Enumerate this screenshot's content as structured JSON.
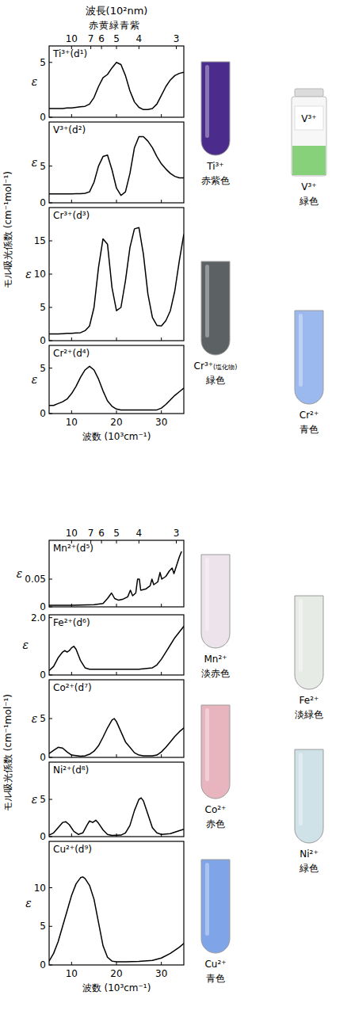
{
  "chart_data": [
    {
      "type": "line",
      "title": "Ti³⁺(d¹)",
      "y_label": "ε",
      "x2_label": "波長(10²nm)",
      "annotations": [
        "赤黄緑青紫"
      ],
      "x": [
        5,
        6,
        7,
        8,
        9,
        10,
        11,
        12,
        13,
        14,
        15,
        16,
        17,
        18,
        19,
        20,
        21,
        22,
        23,
        24,
        25,
        26,
        27,
        28,
        29,
        30,
        31,
        32,
        33,
        34,
        35
      ],
      "values": [
        0.8,
        0.8,
        0.8,
        0.8,
        0.85,
        0.85,
        0.9,
        0.95,
        1.0,
        1.2,
        1.8,
        2.8,
        3.6,
        3.9,
        4.5,
        5.0,
        4.8,
        3.8,
        2.4,
        1.4,
        0.9,
        0.7,
        0.7,
        0.8,
        1.2,
        2.0,
        2.8,
        3.4,
        3.8,
        4.0,
        4.1
      ],
      "color": "#000000",
      "xlim": [
        5,
        35
      ],
      "ylim": [
        0,
        6.5
      ],
      "xticks": [
        10,
        20,
        30
      ],
      "yticks": [
        0,
        5
      ],
      "x2ticks": [
        10,
        7,
        6,
        5,
        4,
        3
      ],
      "tick_labels": "y"
    },
    {
      "type": "line",
      "title": "V³⁺(d²)",
      "y_label": "ε",
      "x": [
        5,
        6,
        7,
        8,
        9,
        10,
        11,
        12,
        13,
        14,
        15,
        16,
        17,
        18,
        19,
        20,
        21,
        22,
        23,
        24,
        25,
        26,
        27,
        28,
        29,
        30,
        31,
        32,
        33,
        34,
        35
      ],
      "values": [
        1.2,
        1.2,
        1.2,
        1.2,
        1.2,
        1.2,
        1.25,
        1.25,
        1.3,
        1.5,
        2.8,
        5.0,
        6.3,
        6.5,
        4.5,
        2.0,
        1.0,
        1.5,
        4.0,
        7.5,
        9.0,
        9.0,
        8.4,
        7.5,
        6.3,
        5.3,
        4.6,
        4.0,
        3.6,
        3.4,
        3.4
      ],
      "color": "#000000",
      "xlim": [
        5,
        35
      ],
      "ylim": [
        0,
        11
      ],
      "xticks": [
        10,
        20,
        30
      ],
      "yticks": [
        0,
        5
      ],
      "tick_labels": "y"
    },
    {
      "type": "line",
      "title": "Cr³⁺(d³)",
      "y_label": "ε",
      "x": [
        5,
        6,
        7,
        8,
        9,
        10,
        11,
        12,
        13,
        14,
        15,
        16,
        17,
        18,
        19,
        20,
        21,
        22,
        23,
        24,
        25,
        26,
        27,
        28,
        29,
        30,
        31,
        32,
        33,
        34,
        35
      ],
      "values": [
        1.0,
        1.0,
        1.0,
        1.05,
        1.1,
        1.1,
        1.15,
        1.2,
        1.5,
        2.2,
        5.0,
        11.0,
        15.3,
        14.5,
        8.0,
        4.5,
        5.0,
        9.0,
        14.0,
        16.8,
        17.0,
        13.0,
        7.0,
        3.5,
        2.3,
        2.2,
        3.0,
        4.5,
        7.5,
        12.0,
        16.0
      ],
      "color": "#000000",
      "xlim": [
        5,
        35
      ],
      "ylim": [
        0,
        20
      ],
      "xticks": [
        10,
        20,
        30
      ],
      "yticks": [
        0,
        5,
        10,
        15
      ],
      "tick_labels": "y"
    },
    {
      "type": "line",
      "title": "Cr²⁺(d⁴)",
      "y_label": "ε",
      "x_label": "波数 (10³cm⁻¹)",
      "x": [
        5,
        6,
        7,
        8,
        9,
        10,
        11,
        12,
        13,
        14,
        15,
        16,
        17,
        18,
        19,
        20,
        21,
        22,
        23,
        24,
        25,
        26,
        27,
        28,
        29,
        30,
        31,
        32,
        33,
        34,
        35
      ],
      "values": [
        0.9,
        0.9,
        1.1,
        1.3,
        1.6,
        2.2,
        3.0,
        4.0,
        4.8,
        5.2,
        4.8,
        3.8,
        2.5,
        1.4,
        0.8,
        0.5,
        0.4,
        0.4,
        0.4,
        0.4,
        0.4,
        0.4,
        0.4,
        0.4,
        0.4,
        0.6,
        1.0,
        1.5,
        2.0,
        2.4,
        2.8
      ],
      "color": "#000000",
      "xlim": [
        5,
        35
      ],
      "ylim": [
        0,
        7.5
      ],
      "xticks": [
        10,
        20,
        30
      ],
      "yticks": [
        0,
        5
      ],
      "tick_labels": true
    },
    {
      "type": "line",
      "title": "Mn²⁺(d⁵)",
      "y_label": "ε",
      "x": [
        5,
        10,
        15,
        17,
        18,
        18.9,
        19.6,
        20.5,
        21.5,
        22.5,
        23.1,
        23.6,
        24.3,
        24.7,
        25.1,
        25.4,
        26.5,
        27.5,
        27.9,
        28.3,
        29.2,
        29.7,
        30.1,
        31,
        31.8,
        32.4,
        32.8,
        33.4,
        34,
        34.5
      ],
      "values": [
        0.003,
        0.003,
        0.004,
        0.006,
        0.015,
        0.025,
        0.015,
        0.012,
        0.014,
        0.018,
        0.03,
        0.02,
        0.025,
        0.05,
        0.05,
        0.03,
        0.032,
        0.038,
        0.05,
        0.04,
        0.045,
        0.062,
        0.05,
        0.055,
        0.065,
        0.07,
        0.06,
        0.075,
        0.09,
        0.1
      ],
      "color": "#000000",
      "xlim": [
        5,
        35
      ],
      "ylim": [
        0,
        0.12
      ],
      "xticks": [
        10,
        20,
        30
      ],
      "yticks": [
        0,
        0.05
      ],
      "x2ticks": [
        10,
        7,
        6,
        5,
        4,
        3
      ],
      "tick_labels": "y"
    },
    {
      "type": "line",
      "title": "Fe²⁺(d⁶)",
      "y_label": "ε",
      "x": [
        5,
        6,
        7,
        8,
        8.5,
        9,
        9.5,
        10,
        10.5,
        11,
        12,
        13,
        14,
        16,
        20,
        25,
        28,
        29,
        30,
        31,
        32,
        33,
        34,
        35
      ],
      "values": [
        0.15,
        0.3,
        0.6,
        0.8,
        0.85,
        0.8,
        0.85,
        0.95,
        1.0,
        0.9,
        0.5,
        0.25,
        0.2,
        0.2,
        0.2,
        0.2,
        0.25,
        0.35,
        0.55,
        0.8,
        1.05,
        1.3,
        1.5,
        1.7
      ],
      "color": "#000000",
      "xlim": [
        5,
        35
      ],
      "ylim": [
        0,
        2.1
      ],
      "xticks": [
        10,
        20,
        30
      ],
      "yticks": [
        0,
        {
          "value": 2,
          "label": "2.0"
        }
      ],
      "tick_labels": "y"
    },
    {
      "type": "line",
      "title": "Co²⁺(d⁷)",
      "y_label": "ε",
      "x": [
        5,
        6,
        7,
        8,
        9,
        10,
        12,
        13,
        14,
        15,
        16,
        17,
        18,
        19,
        19.5,
        20,
        21,
        22,
        23,
        24,
        25,
        26,
        28,
        29,
        30,
        31,
        32,
        33,
        34,
        35
      ],
      "values": [
        0.5,
        0.9,
        1.3,
        1.2,
        0.7,
        0.3,
        0.15,
        0.2,
        0.4,
        0.8,
        1.5,
        2.6,
        3.8,
        4.8,
        5.0,
        4.6,
        3.3,
        2.0,
        1.3,
        0.6,
        0.3,
        0.2,
        0.2,
        0.3,
        0.7,
        1.3,
        2.0,
        2.7,
        3.3,
        3.8
      ],
      "color": "#000000",
      "xlim": [
        5,
        35
      ],
      "ylim": [
        0,
        10
      ],
      "xticks": [
        10,
        20,
        30
      ],
      "yticks": [
        0,
        5
      ],
      "tick_labels": "y"
    },
    {
      "type": "line",
      "title": "Ni²⁺(d⁸)",
      "y_label": "ε",
      "x": [
        5,
        6,
        7,
        8,
        8.7,
        9.5,
        10.5,
        11.5,
        12.5,
        13.5,
        14,
        14.7,
        15.4,
        16,
        17,
        18,
        19,
        21,
        22,
        23,
        24,
        25,
        25.5,
        26,
        27,
        28,
        29,
        30,
        32,
        34,
        35
      ],
      "values": [
        0.2,
        0.5,
        1.2,
        1.9,
        2.0,
        1.6,
        0.7,
        0.3,
        0.5,
        1.6,
        2.1,
        1.9,
        2.2,
        1.8,
        0.9,
        0.3,
        0.15,
        0.2,
        0.5,
        1.5,
        3.5,
        5.0,
        5.2,
        4.8,
        3.0,
        1.2,
        0.5,
        0.3,
        0.4,
        0.8,
        1.0
      ],
      "color": "#000000",
      "xlim": [
        5,
        35
      ],
      "ylim": [
        0,
        10
      ],
      "xticks": [
        10,
        20,
        30
      ],
      "yticks": [
        0,
        5
      ],
      "tick_labels": "y"
    },
    {
      "type": "line",
      "title": "Cu²⁺(d⁹)",
      "y_label": "ε",
      "x_label": "波数 (10³cm⁻¹)",
      "x": [
        5,
        6,
        7,
        8,
        9,
        10,
        11,
        12,
        12.5,
        13,
        14,
        15,
        16,
        17,
        18,
        19,
        20,
        22,
        25,
        28,
        30,
        32,
        34,
        35
      ],
      "values": [
        0.5,
        1.5,
        3.0,
        5.0,
        7.0,
        9.0,
        10.5,
        11.3,
        11.4,
        11.2,
        10.3,
        8.5,
        5.5,
        2.5,
        1.0,
        0.5,
        0.4,
        0.4,
        0.45,
        0.6,
        0.9,
        1.5,
        2.3,
        2.8
      ],
      "color": "#000000",
      "xlim": [
        5,
        35
      ],
      "ylim": [
        0,
        16
      ],
      "xticks": [
        10,
        20,
        30
      ],
      "yticks": [
        0,
        5,
        10
      ],
      "tick_labels": true
    }
  ],
  "figure": {
    "y_labels": [
      "モル吸光係数 (cm⁻¹mol⁻¹)",
      "モル吸光係数 (cm⁻¹mol⁻¹)"
    ],
    "tubes": [
      {
        "ion": "Ti³⁺",
        "color_name": "赤紫色",
        "color": "#4b2c8c"
      },
      {
        "ion": "V³⁺",
        "color_name": "緑色",
        "color": "#86d17a",
        "tube_text": "V³⁺"
      },
      {
        "ion": "Cr³⁺",
        "note": "(塩化物)",
        "color_name": "緑色",
        "color": "#5c6163"
      },
      {
        "ion": "Cr²⁺",
        "color_name": "青色",
        "color": "#9bb9ee"
      },
      {
        "ion": "Mn²⁺",
        "color_name": "淡赤色",
        "color": "#ece4ea"
      },
      {
        "ion": "Fe²⁺",
        "color_name": "淡緑色",
        "color": "#e7ebe5"
      },
      {
        "ion": "Co²⁺",
        "color_name": "赤色",
        "color": "#e8b5bf"
      },
      {
        "ion": "Ni²⁺",
        "color_name": "緑色",
        "color": "#cfe2e7"
      },
      {
        "ion": "Cu²⁺",
        "color_name": "青色",
        "color": "#7fa4e8"
      }
    ]
  }
}
